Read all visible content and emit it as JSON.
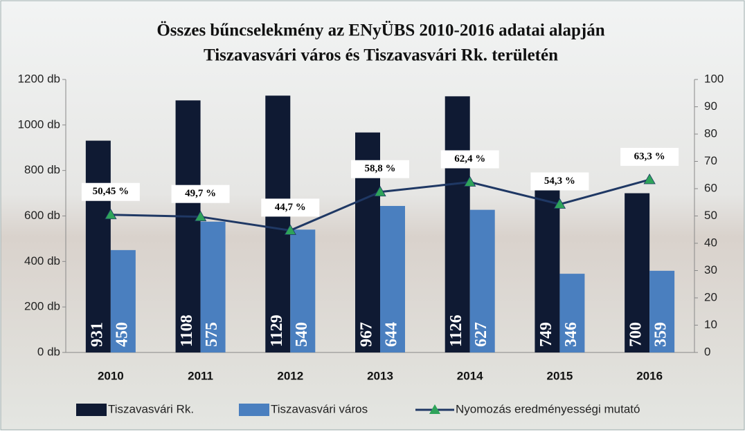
{
  "chart_data": {
    "type": "bar",
    "title": [
      "Összes bűncselekmény az ENyÜBS  2010-2016 adatai alapján",
      "Tiszavasvári város és Tiszavasvári Rk. területén"
    ],
    "categories": [
      "2010",
      "2011",
      "2012",
      "2013",
      "2014",
      "2015",
      "2016"
    ],
    "series": [
      {
        "name": "Tiszavasvári Rk.",
        "type": "bar",
        "color": "#0f1a33",
        "values": [
          931,
          1108,
          1129,
          967,
          1126,
          749,
          700
        ]
      },
      {
        "name": "Tiszavasvári város",
        "type": "bar",
        "color": "#4a7fbf",
        "values": [
          450,
          575,
          540,
          644,
          627,
          346,
          359
        ]
      },
      {
        "name": "Nyomozás eredményességi mutató",
        "type": "line",
        "axis": "y2",
        "color": "#1f3864",
        "marker_color": "#2ea35a",
        "values": [
          50.45,
          49.7,
          44.7,
          58.8,
          62.4,
          54.3,
          63.3
        ],
        "value_labels": [
          "50,45 %",
          "49,7 %",
          "44,7 %",
          "58,8 %",
          "62,4 %",
          "54,3 %",
          "63,3 %"
        ]
      }
    ],
    "ylim": [
      0,
      1200
    ],
    "yticks": [
      {
        "value": 0,
        "label": "0 db"
      },
      {
        "value": 200,
        "label": "200 db"
      },
      {
        "value": 400,
        "label": "400 db"
      },
      {
        "value": 600,
        "label": "600 db"
      },
      {
        "value": 800,
        "label": "800 db"
      },
      {
        "value": 1000,
        "label": "1000 db"
      },
      {
        "value": 1200,
        "label": "1200 db"
      }
    ],
    "y2lim": [
      0,
      100
    ],
    "y2ticks": [
      0,
      10,
      20,
      30,
      40,
      50,
      60,
      70,
      80,
      90,
      100
    ],
    "legend": "bottom"
  }
}
